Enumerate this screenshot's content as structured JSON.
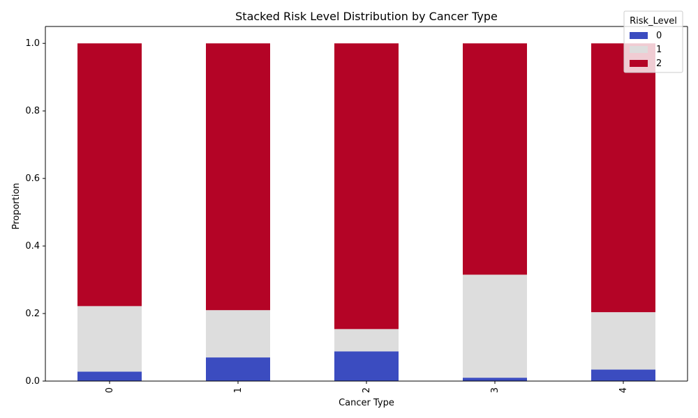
{
  "chart_data": {
    "type": "bar",
    "stacked": true,
    "title": "Stacked Risk Level Distribution by Cancer Type",
    "xlabel": "Cancer Type",
    "ylabel": "Proportion",
    "categories": [
      "0",
      "1",
      "2",
      "3",
      "4"
    ],
    "ylim": [
      0,
      1.05
    ],
    "yticks": [
      "0.0",
      "0.2",
      "0.4",
      "0.6",
      "0.8",
      "1.0"
    ],
    "grid": false,
    "legend": {
      "title": "Risk_Level",
      "placement": "top-right"
    },
    "series": [
      {
        "name": "0",
        "color": "#3b4cc0",
        "values": [
          0.028,
          0.07,
          0.088,
          0.01,
          0.034
        ]
      },
      {
        "name": "1",
        "color": "#dddddd",
        "values": [
          0.194,
          0.14,
          0.066,
          0.305,
          0.17
        ]
      },
      {
        "name": "2",
        "color": "#b40426",
        "values": [
          0.778,
          0.79,
          0.846,
          0.685,
          0.796
        ]
      }
    ]
  }
}
